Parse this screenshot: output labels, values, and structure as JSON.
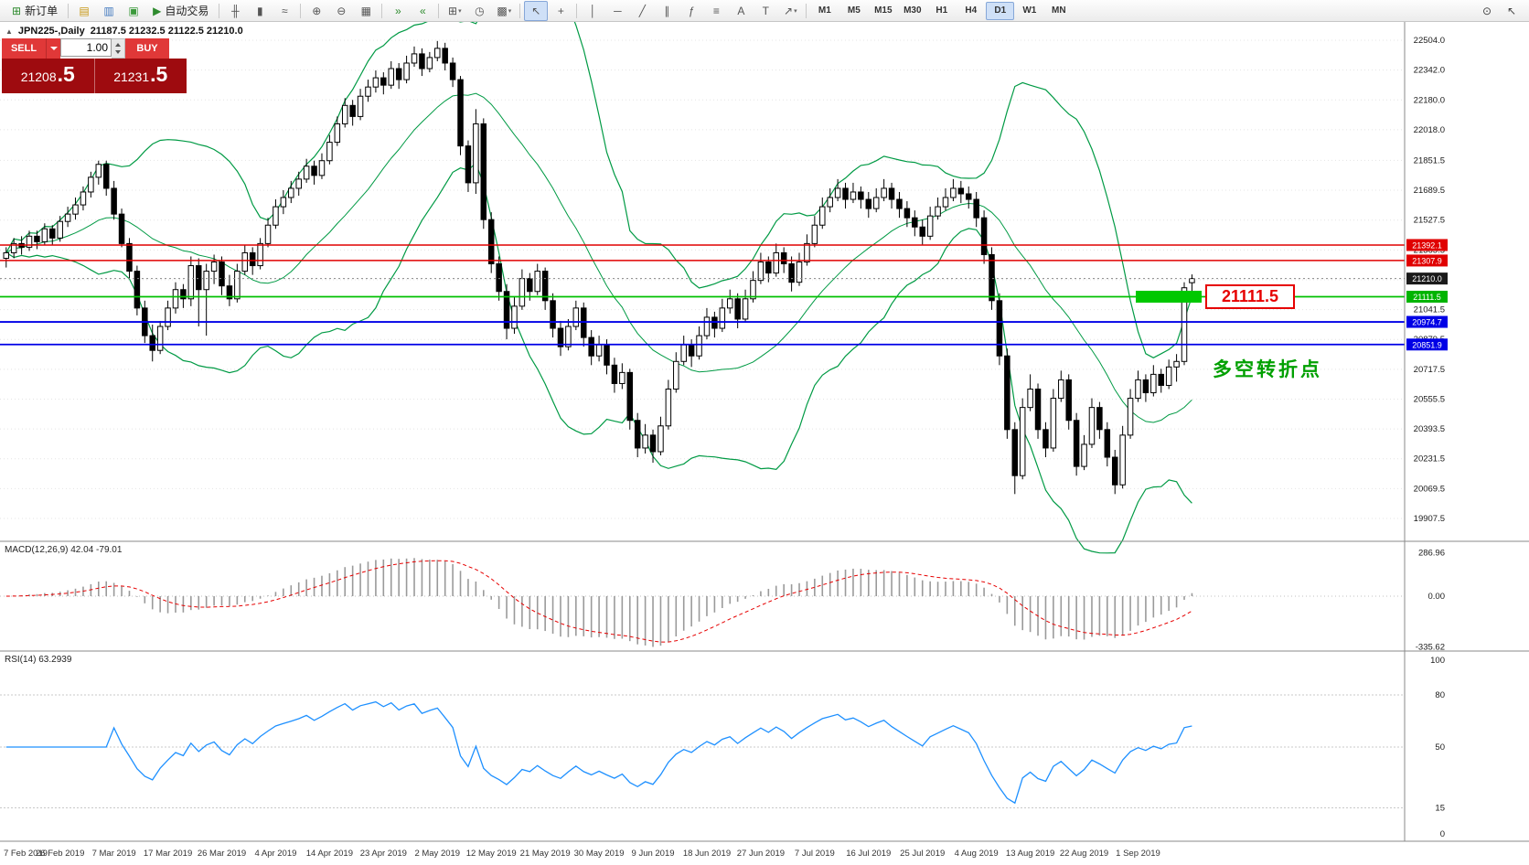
{
  "toolbar": {
    "items": [
      {
        "name": "new-order-button",
        "glyph": "⊞",
        "glyph_color": "#2e8b2e",
        "label": "新订单"
      },
      {
        "sep": true
      },
      {
        "name": "chart-window-icon",
        "glyph": "▤",
        "glyph_color": "#c79612"
      },
      {
        "name": "profiles-icon",
        "glyph": "▥",
        "glyph_color": "#4178be"
      },
      {
        "name": "market-watch-icon",
        "glyph": "▣",
        "glyph_color": "#3c9a3c"
      },
      {
        "name": "autotrade-button",
        "glyph": "▶",
        "glyph_color": "#2e8b2e",
        "label": "自动交易"
      },
      {
        "sep": true
      },
      {
        "name": "bar-chart-icon",
        "glyph": "╫"
      },
      {
        "name": "candlestick-chart-icon",
        "glyph": "▮"
      },
      {
        "name": "line-chart-icon",
        "glyph": "≈"
      },
      {
        "sep": true
      },
      {
        "name": "zoom-in-icon",
        "glyph": "⊕"
      },
      {
        "name": "zoom-out-icon",
        "glyph": "⊖"
      },
      {
        "name": "tile-windows-icon",
        "glyph": "▦"
      },
      {
        "sep": true
      },
      {
        "name": "auto-scroll-icon",
        "glyph": "»",
        "glyph_color": "#2e8b2e"
      },
      {
        "name": "chart-shift-icon",
        "glyph": "«",
        "glyph_color": "#2e8b2e"
      },
      {
        "sep": true
      },
      {
        "name": "new-chart-icon",
        "glyph": "⊞",
        "dropdown": true
      },
      {
        "name": "period-clock-icon",
        "glyph": "◷"
      },
      {
        "name": "templates-icon",
        "glyph": "▩",
        "dropdown": true
      },
      {
        "sep": true
      },
      {
        "name": "cursor-icon",
        "glyph": "↖",
        "active": true
      },
      {
        "name": "crosshair-icon",
        "glyph": "+"
      },
      {
        "sep": true
      },
      {
        "name": "vertical-line-icon",
        "glyph": "│"
      },
      {
        "name": "horizontal-line-icon",
        "glyph": "─"
      },
      {
        "name": "trendline-icon",
        "glyph": "╱"
      },
      {
        "name": "channel-icon",
        "glyph": "∥"
      },
      {
        "name": "fibonacci-icon",
        "glyph": "ƒ"
      },
      {
        "name": "objects-icon",
        "glyph": "≡"
      },
      {
        "name": "text-icon",
        "glyph": "A"
      },
      {
        "name": "label-icon",
        "glyph": "T"
      },
      {
        "name": "arrows-icon",
        "glyph": "↗",
        "dropdown": true
      },
      {
        "sep": true
      }
    ],
    "timeframes": [
      "M1",
      "M5",
      "M15",
      "M30",
      "H1",
      "H4",
      "D1",
      "W1",
      "MN"
    ],
    "active_timeframe": "D1",
    "right_icons": [
      {
        "name": "magnifier-icon",
        "glyph": "⊙"
      },
      {
        "name": "pointer-icon",
        "glyph": "↖"
      }
    ]
  },
  "trade_panel": {
    "sell_label": "SELL",
    "buy_label": "BUY",
    "volume": "1.00",
    "sell_price_main": "21208",
    "sell_price_frac": ".5",
    "buy_price_main": "21231",
    "buy_price_frac": ".5"
  },
  "chart_header": {
    "collapse_icon": "▲",
    "symbol": "JPN225-,Daily",
    "ohlc": "21187.5 21232.5 21122.5 21210.0"
  },
  "indicators": {
    "macd_label": "MACD(12,26,9) 42.04 -79.01",
    "rsi_label": "RSI(14) 63.2939"
  },
  "annotations": {
    "price_callout": "21111.5",
    "note": "多空转折点"
  },
  "levels": [
    {
      "price": 21392.1,
      "label": "21392.1",
      "color": "#e00000",
      "width": 1.5,
      "type": "solid"
    },
    {
      "price": 21307.9,
      "label": "21307.9",
      "color": "#e00000",
      "width": 1.5,
      "type": "solid"
    },
    {
      "price": 21210.0,
      "label": "21210.0",
      "color": "#888888",
      "width": 1,
      "type": "dotted",
      "tag_bg": "#1a1a1a"
    },
    {
      "price": 21111.5,
      "label": "21111.5",
      "color": "#00c000",
      "width": 1.8,
      "type": "solid",
      "highlight": true,
      "tag_bg": "#00b400"
    },
    {
      "price": 20974.7,
      "label": "20974.7",
      "color": "#0000e6",
      "width": 1.8,
      "type": "solid"
    },
    {
      "price": 20851.9,
      "label": "20851.9",
      "color": "#0000e6",
      "width": 1.8,
      "type": "solid"
    }
  ],
  "axis": {
    "price_labels": [
      "22504.0",
      "22342.0",
      "22180.0",
      "22018.0",
      "21851.5",
      "21689.5",
      "21527.5",
      "21365.5",
      "21203.5",
      "21041.5",
      "20879.5",
      "20717.5",
      "20555.5",
      "20393.5",
      "20231.5",
      "20069.5",
      "19907.5"
    ],
    "macd_labels": [
      {
        "text": "286.96",
        "value": 286.96
      },
      {
        "text": "0.00",
        "value": 0
      },
      {
        "text": "-335.62",
        "value": -335.62
      }
    ],
    "rsi_labels": [
      {
        "text": "100",
        "value": 100
      },
      {
        "text": "80",
        "value": 80,
        "level": true
      },
      {
        "text": "50",
        "value": 50,
        "level": true
      },
      {
        "text": "15",
        "value": 15,
        "level": true
      },
      {
        "text": "0",
        "value": 0
      }
    ],
    "dates": [
      "7 Feb 2019",
      "26 Feb 2019",
      "7 Mar 2019",
      "17 Mar 2019",
      "26 Mar 2019",
      "4 Apr 2019",
      "14 Apr 2019",
      "23 Apr 2019",
      "2 May 2019",
      "12 May 2019",
      "21 May 2019",
      "30 May 2019",
      "9 Jun 2019",
      "18 Jun 2019",
      "27 Jun 2019",
      "7 Jul 2019",
      "16 Jul 2019",
      "25 Jul 2019",
      "4 Aug 2019",
      "13 Aug 2019",
      "22 Aug 2019",
      "1 Sep 2019"
    ]
  },
  "chart_data": {
    "type": "candlestick",
    "symbol": "JPN225-",
    "timeframe": "Daily",
    "last_ohlc": {
      "open": 21187.5,
      "high": 21232.5,
      "low": 21122.5,
      "close": 21210.0
    },
    "date_step": 7,
    "y_range": [
      19784,
      22560
    ],
    "overlays": {
      "bollinger": {
        "period": 20,
        "deviation": 2,
        "color": "#009a44"
      }
    },
    "macd": {
      "fast": 12,
      "slow": 26,
      "signal": 9,
      "main_value": 42.04,
      "signal_value": -79.01,
      "range": [
        -335.62,
        286.96
      ]
    },
    "rsi": {
      "period": 14,
      "value": 63.2939,
      "levels": [
        80,
        50,
        15
      ]
    },
    "candles": [
      [
        21320,
        21380,
        21270,
        21350
      ],
      [
        21350,
        21430,
        21320,
        21400
      ],
      [
        21400,
        21440,
        21340,
        21380
      ],
      [
        21380,
        21470,
        21360,
        21440
      ],
      [
        21440,
        21470,
        21370,
        21410
      ],
      [
        21410,
        21510,
        21390,
        21480
      ],
      [
        21480,
        21500,
        21390,
        21430
      ],
      [
        21430,
        21550,
        21410,
        21520
      ],
      [
        21520,
        21600,
        21490,
        21560
      ],
      [
        21560,
        21650,
        21530,
        21610
      ],
      [
        21610,
        21710,
        21580,
        21680
      ],
      [
        21680,
        21790,
        21650,
        21760
      ],
      [
        21760,
        21850,
        21720,
        21830
      ],
      [
        21830,
        21850,
        21660,
        21700
      ],
      [
        21700,
        21740,
        21530,
        21560
      ],
      [
        21560,
        21590,
        21380,
        21400
      ],
      [
        21400,
        21430,
        21210,
        21250
      ],
      [
        21250,
        21280,
        21010,
        21050
      ],
      [
        21050,
        21090,
        20860,
        20900
      ],
      [
        20900,
        20960,
        20760,
        20820
      ],
      [
        20820,
        20980,
        20800,
        20950
      ],
      [
        20950,
        21090,
        20930,
        21050
      ],
      [
        21050,
        21190,
        21020,
        21150
      ],
      [
        21150,
        21180,
        21050,
        21100
      ],
      [
        21100,
        21330,
        21060,
        21280
      ],
      [
        21280,
        21320,
        20950,
        21150
      ],
      [
        21150,
        21290,
        20900,
        21250
      ],
      [
        21250,
        21340,
        21180,
        21300
      ],
      [
        21300,
        21330,
        21120,
        21170
      ],
      [
        21170,
        21230,
        21060,
        21100
      ],
      [
        21100,
        21290,
        21080,
        21250
      ],
      [
        21250,
        21390,
        21230,
        21350
      ],
      [
        21350,
        21380,
        21230,
        21280
      ],
      [
        21280,
        21430,
        21260,
        21400
      ],
      [
        21400,
        21540,
        21380,
        21500
      ],
      [
        21500,
        21640,
        21480,
        21600
      ],
      [
        21600,
        21690,
        21560,
        21650
      ],
      [
        21650,
        21740,
        21620,
        21700
      ],
      [
        21700,
        21790,
        21660,
        21750
      ],
      [
        21750,
        21860,
        21730,
        21820
      ],
      [
        21820,
        21850,
        21720,
        21770
      ],
      [
        21770,
        21890,
        21750,
        21850
      ],
      [
        21850,
        21990,
        21830,
        21950
      ],
      [
        21950,
        22090,
        21930,
        22050
      ],
      [
        22050,
        22190,
        22030,
        22150
      ],
      [
        22150,
        22180,
        22040,
        22090
      ],
      [
        22090,
        22240,
        22070,
        22200
      ],
      [
        22200,
        22290,
        22170,
        22250
      ],
      [
        22250,
        22340,
        22220,
        22300
      ],
      [
        22300,
        22330,
        22210,
        22260
      ],
      [
        22260,
        22390,
        22240,
        22350
      ],
      [
        22350,
        22380,
        22240,
        22290
      ],
      [
        22290,
        22420,
        22270,
        22380
      ],
      [
        22380,
        22470,
        22360,
        22430
      ],
      [
        22430,
        22460,
        22310,
        22350
      ],
      [
        22350,
        22440,
        22330,
        22410
      ],
      [
        22410,
        22500,
        22390,
        22460
      ],
      [
        22460,
        22490,
        22340,
        22380
      ],
      [
        22380,
        22410,
        22250,
        22290
      ],
      [
        22290,
        22310,
        21880,
        21930
      ],
      [
        21930,
        21960,
        21680,
        21730
      ],
      [
        21730,
        22130,
        21670,
        22050
      ],
      [
        22050,
        22080,
        21480,
        21530
      ],
      [
        21530,
        21570,
        21240,
        21290
      ],
      [
        21290,
        21330,
        21090,
        21140
      ],
      [
        21140,
        21180,
        20880,
        20940
      ],
      [
        20940,
        21110,
        20910,
        21060
      ],
      [
        21060,
        21260,
        21040,
        21210
      ],
      [
        21210,
        21240,
        21090,
        21140
      ],
      [
        21140,
        21290,
        21120,
        21250
      ],
      [
        21250,
        21270,
        21040,
        21090
      ],
      [
        21090,
        21130,
        20890,
        20940
      ],
      [
        20940,
        20980,
        20790,
        20840
      ],
      [
        20840,
        20990,
        20820,
        20950
      ],
      [
        20950,
        21090,
        20930,
        21050
      ],
      [
        21050,
        21080,
        20840,
        20890
      ],
      [
        20890,
        20930,
        20740,
        20790
      ],
      [
        20790,
        20900,
        20760,
        20850
      ],
      [
        20850,
        20880,
        20690,
        20740
      ],
      [
        20740,
        20780,
        20590,
        20640
      ],
      [
        20640,
        20750,
        20610,
        20700
      ],
      [
        20700,
        20720,
        20390,
        20440
      ],
      [
        20440,
        20480,
        20240,
        20290
      ],
      [
        20290,
        20420,
        20260,
        20360
      ],
      [
        20360,
        20390,
        20210,
        20270
      ],
      [
        20270,
        20460,
        20250,
        20410
      ],
      [
        20410,
        20660,
        20390,
        20610
      ],
      [
        20610,
        20810,
        20590,
        20760
      ],
      [
        20760,
        20900,
        20740,
        20850
      ],
      [
        20850,
        20880,
        20730,
        20790
      ],
      [
        20790,
        20950,
        20770,
        20900
      ],
      [
        20900,
        21050,
        20880,
        21000
      ],
      [
        21000,
        21030,
        20890,
        20940
      ],
      [
        20940,
        21100,
        20920,
        21050
      ],
      [
        21050,
        21150,
        21020,
        21100
      ],
      [
        21100,
        21130,
        20940,
        20990
      ],
      [
        20990,
        21150,
        20970,
        21100
      ],
      [
        21100,
        21250,
        21080,
        21200
      ],
      [
        21200,
        21350,
        21180,
        21300
      ],
      [
        21300,
        21330,
        21190,
        21240
      ],
      [
        21240,
        21400,
        21220,
        21350
      ],
      [
        21350,
        21380,
        21240,
        21290
      ],
      [
        21290,
        21330,
        21140,
        21190
      ],
      [
        21190,
        21350,
        21170,
        21300
      ],
      [
        21300,
        21450,
        21280,
        21400
      ],
      [
        21400,
        21550,
        21380,
        21500
      ],
      [
        21500,
        21650,
        21480,
        21600
      ],
      [
        21600,
        21700,
        21570,
        21650
      ],
      [
        21650,
        21750,
        21630,
        21700
      ],
      [
        21700,
        21730,
        21590,
        21640
      ],
      [
        21640,
        21730,
        21620,
        21680
      ],
      [
        21680,
        21710,
        21590,
        21640
      ],
      [
        21640,
        21680,
        21540,
        21590
      ],
      [
        21590,
        21700,
        21570,
        21650
      ],
      [
        21650,
        21750,
        21630,
        21700
      ],
      [
        21700,
        21730,
        21590,
        21640
      ],
      [
        21640,
        21680,
        21540,
        21590
      ],
      [
        21590,
        21630,
        21490,
        21540
      ],
      [
        21540,
        21580,
        21440,
        21490
      ],
      [
        21490,
        21530,
        21390,
        21440
      ],
      [
        21440,
        21600,
        21420,
        21550
      ],
      [
        21550,
        21650,
        21530,
        21600
      ],
      [
        21600,
        21700,
        21580,
        21650
      ],
      [
        21650,
        21750,
        21630,
        21700
      ],
      [
        21700,
        21740,
        21620,
        21670
      ],
      [
        21670,
        21710,
        21590,
        21640
      ],
      [
        21640,
        21680,
        21490,
        21540
      ],
      [
        21540,
        21580,
        21290,
        21340
      ],
      [
        21340,
        21380,
        21040,
        21090
      ],
      [
        21090,
        21130,
        20740,
        20790
      ],
      [
        20790,
        20830,
        20340,
        20390
      ],
      [
        20390,
        20430,
        20040,
        20140
      ],
      [
        20140,
        20560,
        20120,
        20510
      ],
      [
        20510,
        20690,
        20490,
        20610
      ],
      [
        20610,
        20640,
        20340,
        20390
      ],
      [
        20390,
        20430,
        20240,
        20290
      ],
      [
        20290,
        20610,
        20270,
        20560
      ],
      [
        20560,
        20710,
        20540,
        20660
      ],
      [
        20660,
        20690,
        20390,
        20440
      ],
      [
        20440,
        20480,
        20140,
        20190
      ],
      [
        20190,
        20360,
        20170,
        20310
      ],
      [
        20310,
        20560,
        20290,
        20510
      ],
      [
        20510,
        20540,
        20340,
        20390
      ],
      [
        20390,
        20430,
        20190,
        20240
      ],
      [
        20240,
        20280,
        20040,
        20090
      ],
      [
        20090,
        20410,
        20070,
        20360
      ],
      [
        20360,
        20610,
        20340,
        20560
      ],
      [
        20560,
        20710,
        20540,
        20660
      ],
      [
        20660,
        20690,
        20540,
        20590
      ],
      [
        20590,
        20740,
        20570,
        20690
      ],
      [
        20690,
        20720,
        20590,
        20630
      ],
      [
        20630,
        20770,
        20610,
        20730
      ],
      [
        20730,
        20800,
        20650,
        20760
      ],
      [
        20760,
        21190,
        20740,
        21160
      ],
      [
        21187.5,
        21232.5,
        21122.5,
        21210.0
      ]
    ]
  }
}
